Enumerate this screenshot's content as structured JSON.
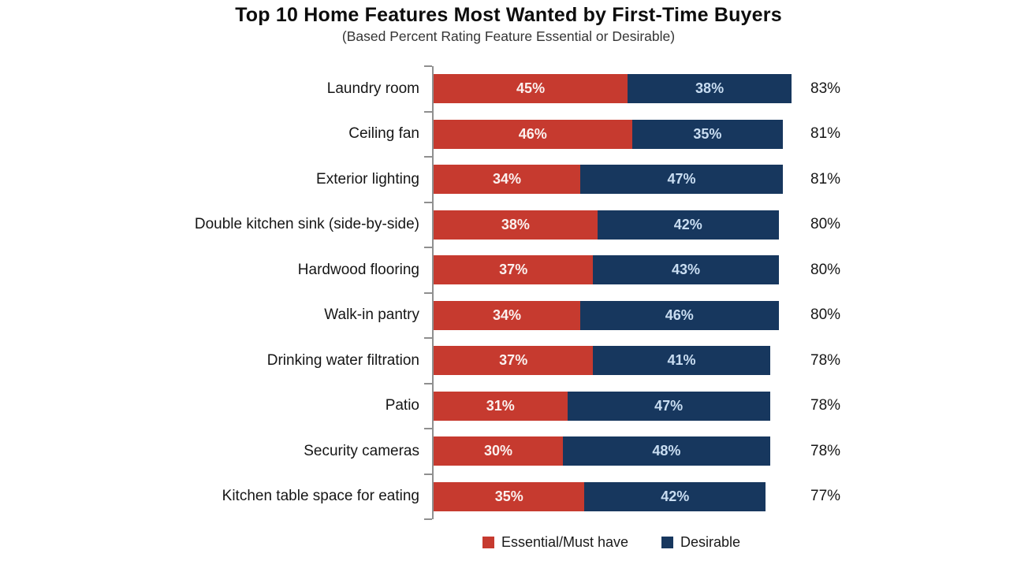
{
  "title": "Top 10 Home Features Most Wanted by First-Time Buyers",
  "subtitle": "(Based Percent Rating Feature Essential or Desirable)",
  "chart_data": {
    "type": "bar",
    "orientation": "horizontal",
    "stacked": true,
    "grid": false,
    "legend_position": "bottom",
    "value_suffix": "%",
    "xlim": [
      0,
      100
    ],
    "axis_color": "#8f8f8f",
    "categories": [
      "Laundry room",
      "Ceiling fan",
      "Exterior lighting",
      "Double kitchen sink (side-by-side)",
      "Hardwood flooring",
      "Walk-in pantry",
      "Drinking water filtration",
      "Patio",
      "Security cameras",
      "Kitchen table space for eating"
    ],
    "series": [
      {
        "key": "essential",
        "name": "Essential/Must have",
        "color": "#C63A2F",
        "label_color": "#FBF1EF",
        "values": [
          45,
          46,
          34,
          38,
          37,
          34,
          37,
          31,
          30,
          35
        ]
      },
      {
        "key": "desirable",
        "name": "Desirable",
        "color": "#17375E",
        "label_color": "#C9DDF1",
        "values": [
          38,
          35,
          47,
          42,
          43,
          46,
          41,
          47,
          48,
          42
        ]
      }
    ],
    "totals": [
      83,
      81,
      81,
      80,
      80,
      80,
      78,
      78,
      78,
      77
    ]
  }
}
